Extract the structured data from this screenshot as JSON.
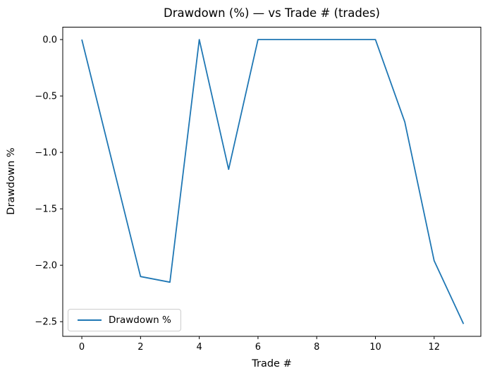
{
  "figure": {
    "background": "#ffffff"
  },
  "chart_data": {
    "type": "line",
    "title": "Drawdown (%) — vs Trade # (trades)",
    "xlabel": "Trade #",
    "ylabel": "Drawdown %",
    "x": [
      0,
      1,
      2,
      3,
      4,
      5,
      6,
      7,
      8,
      9,
      10,
      11,
      12,
      13
    ],
    "series": [
      {
        "name": "Drawdown %",
        "values": [
          0.0,
          -1.05,
          -2.1,
          -2.15,
          0.0,
          -1.15,
          0.0,
          0.0,
          0.0,
          0.0,
          0.0,
          -0.73,
          -1.96,
          -2.52
        ]
      }
    ],
    "xlim": [
      -0.65,
      13.59
    ],
    "ylim": [
      -2.63,
      0.11
    ],
    "xticks": {
      "values": [
        0,
        2,
        4,
        6,
        8,
        10,
        12
      ],
      "labels": [
        "0",
        "2",
        "4",
        "6",
        "8",
        "10",
        "12"
      ]
    },
    "yticks": {
      "values": [
        0.0,
        -0.5,
        -1.0,
        -1.5,
        -2.0,
        -2.5
      ],
      "labels": [
        "0.0",
        "−0.5",
        "−1.0",
        "−1.5",
        "−2.0",
        "−2.5"
      ]
    },
    "grid": false,
    "legend": {
      "label": "Drawdown %",
      "position": "lower left"
    },
    "line_color": "#1f77b4",
    "line_width": 1.8
  }
}
